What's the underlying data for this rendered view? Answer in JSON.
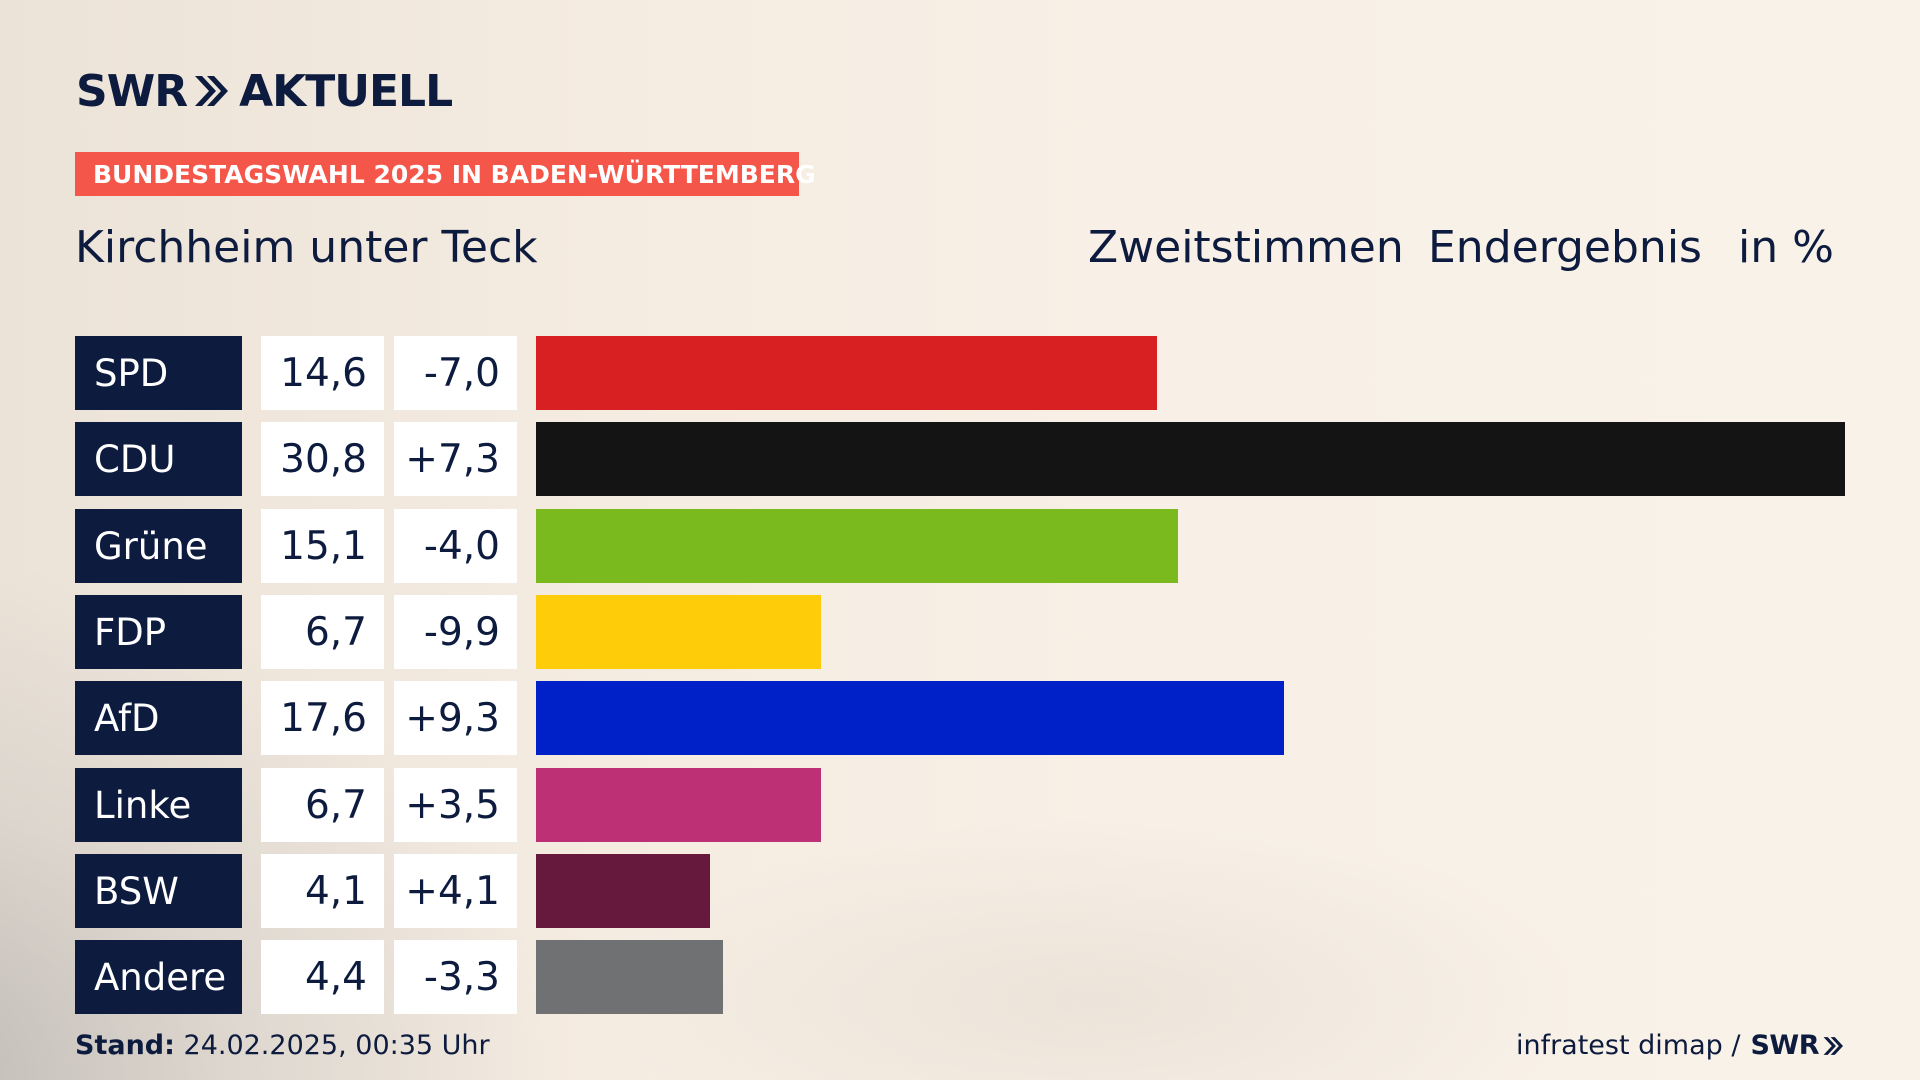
{
  "header": {
    "logo_brand": "SWR",
    "logo_product": "AKTUELL",
    "banner": "BUNDESTAGSWAHL 2025 IN BADEN-WÜRTTEMBERG",
    "place": "Kirchheim unter Teck",
    "vote_type": "Zweitstimmen",
    "result_type": "Endergebnis",
    "unit": "in %"
  },
  "chart_data": {
    "type": "bar",
    "orientation": "horizontal",
    "title": "Kirchheim unter Teck",
    "subtitle": "Zweitstimmen Endergebnis in %",
    "categories": [
      "SPD",
      "CDU",
      "Grüne",
      "FDP",
      "AfD",
      "Linke",
      "BSW",
      "Andere"
    ],
    "values": [
      14.6,
      30.8,
      15.1,
      6.7,
      17.6,
      6.7,
      4.1,
      4.4
    ],
    "value_labels": [
      "14,6",
      "30,8",
      "15,1",
      "6,7",
      "17,6",
      "6,7",
      "4,1",
      "4,4"
    ],
    "changes": [
      -7.0,
      7.3,
      -4.0,
      -9.9,
      9.3,
      3.5,
      4.1,
      -3.3
    ],
    "change_labels": [
      "-7,0",
      "+7,3",
      "-4,0",
      "-9,9",
      "+9,3",
      "+3,5",
      "+4,1",
      "-3,3"
    ],
    "colors": [
      "#d81f22",
      "#141414",
      "#7aba1e",
      "#ffcc0a",
      "#0020c8",
      "#bd3075",
      "#66183d",
      "#707172"
    ],
    "xlim": [
      0,
      30.8
    ],
    "grid": false,
    "legend": "none"
  },
  "footer": {
    "stand_label": "Stand:",
    "stand_value": "24.02.2025, 00:35 Uhr",
    "source": "infratest dimap /",
    "source_brand": "SWR"
  }
}
